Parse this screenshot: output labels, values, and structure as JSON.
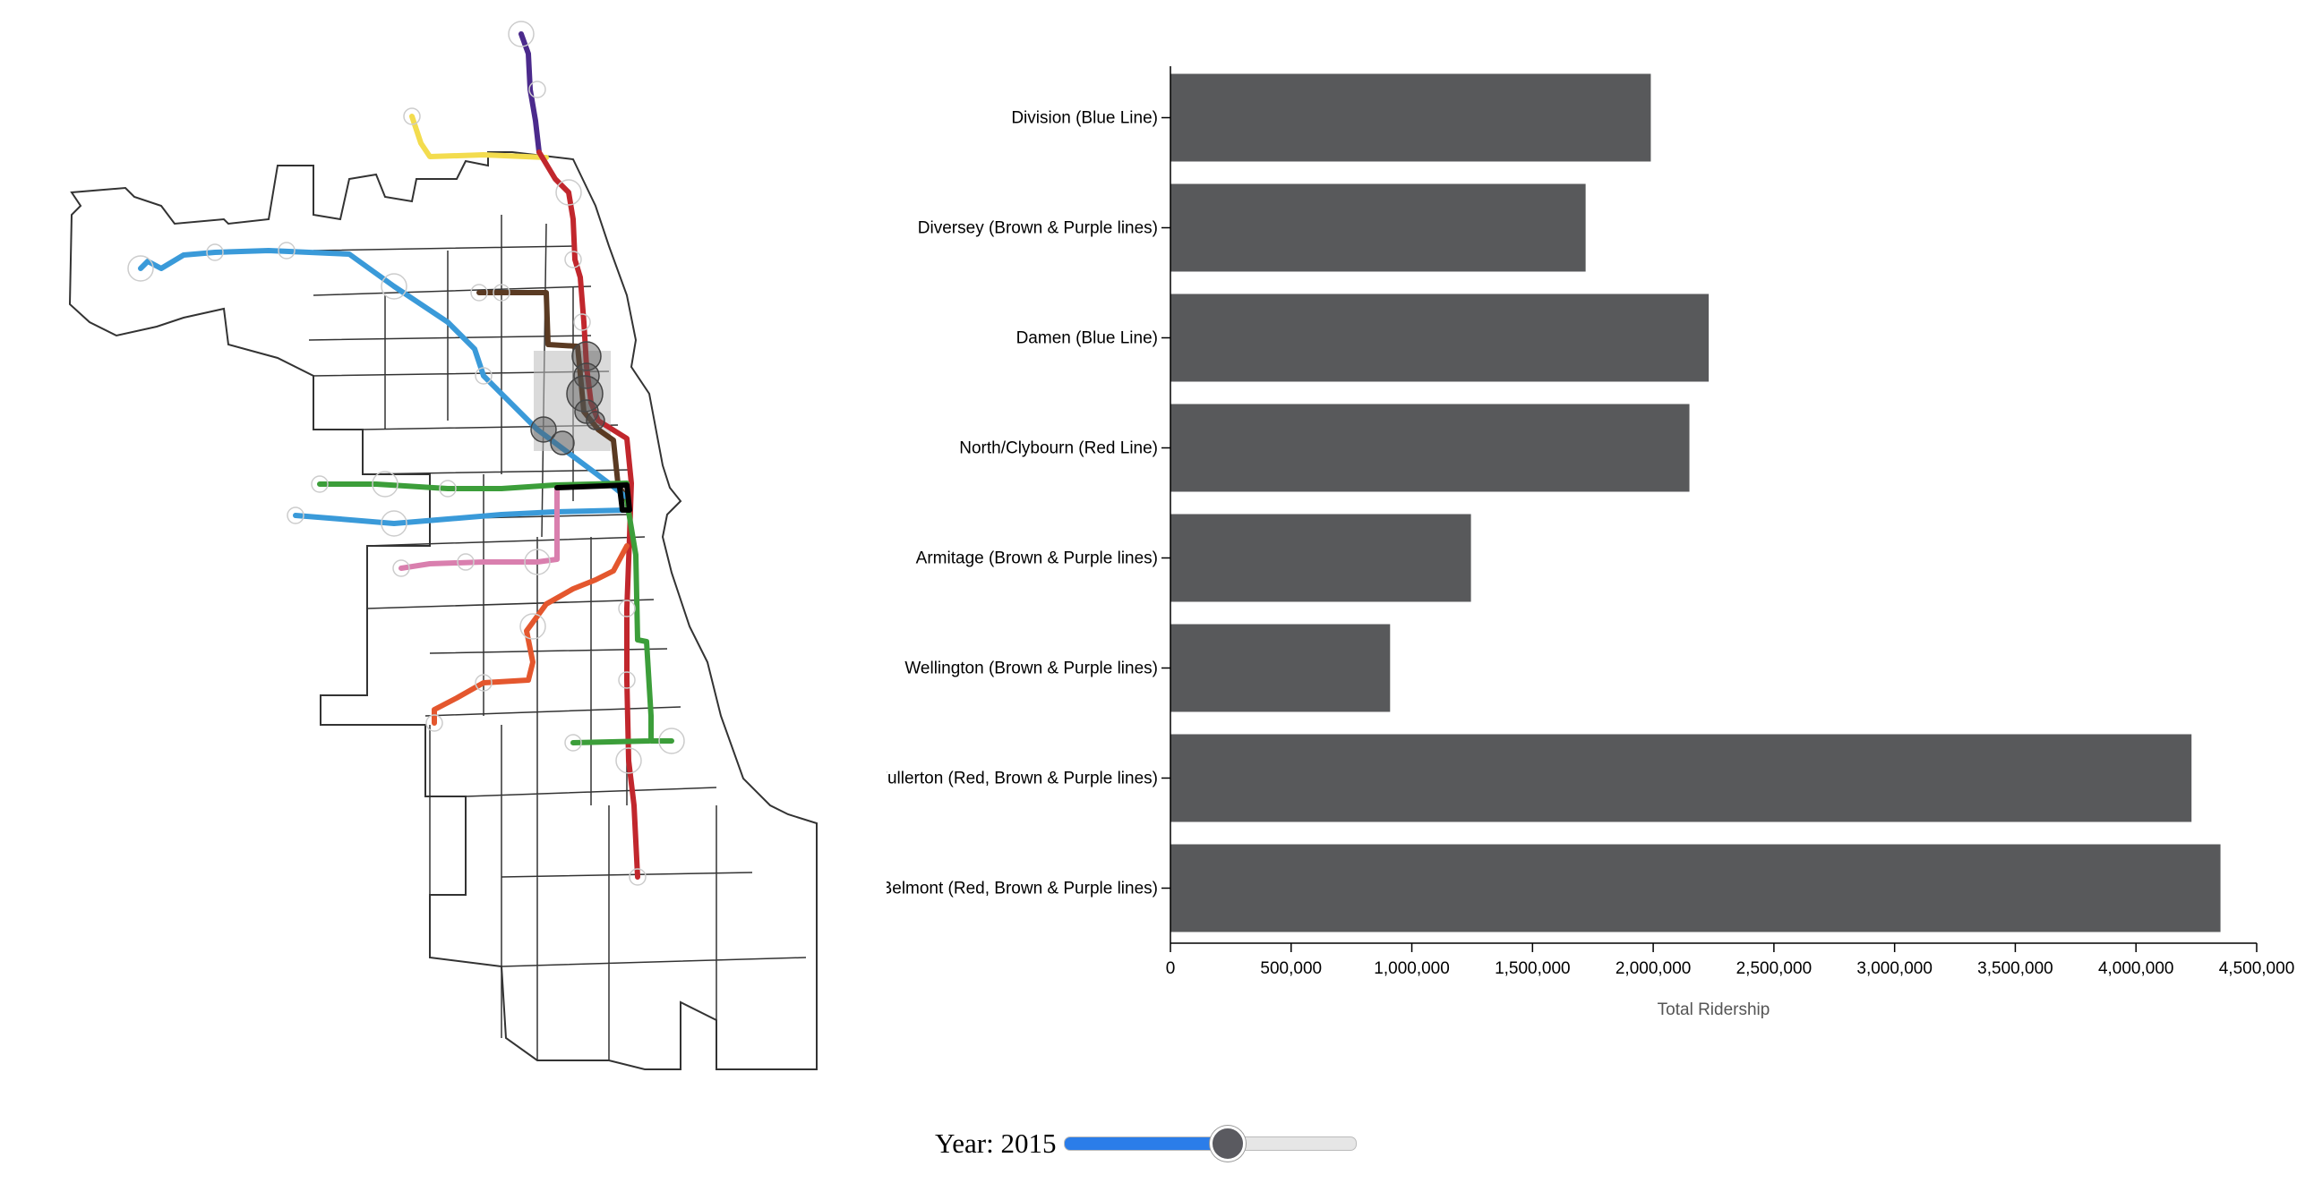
{
  "map": {
    "colors": {
      "boundary": "#333333",
      "red": "#c1272d",
      "blue": "#3a9ad9",
      "brown": "#5a3a22",
      "purple": "#4b2a8c",
      "yellow": "#f3dc4e",
      "green": "#3c9e3a",
      "orange": "#e4572e",
      "pink": "#d97fae",
      "loop": "#000000",
      "brush": "#bbbbbb",
      "station_highlight": "#555555"
    },
    "lines": [
      "purple",
      "yellow",
      "red",
      "brown",
      "blue",
      "green",
      "pink",
      "orange"
    ]
  },
  "chart_data": {
    "type": "bar",
    "orientation": "horizontal",
    "categories": [
      "Division (Blue Line)",
      "Diversey (Brown & Purple lines)",
      "Damen (Blue Line)",
      "North/Clybourn (Red Line)",
      "Armitage (Brown & Purple lines)",
      "Wellington (Brown & Purple lines)",
      "Fullerton (Red, Brown & Purple lines)",
      "Belmont (Red, Brown & Purple lines)"
    ],
    "values": [
      1990000,
      1720000,
      2230000,
      2150000,
      1245000,
      910000,
      4230000,
      4350000
    ],
    "xlabel": "Total Ridership",
    "xlim": [
      0,
      4500000
    ],
    "xticks": [
      0,
      500000,
      1000000,
      1500000,
      2000000,
      2500000,
      3000000,
      3500000,
      4000000,
      4500000
    ],
    "xtick_labels": [
      "0",
      "500,000",
      "1,000,000",
      "1,500,000",
      "2,000,000",
      "2,500,000",
      "3,000,000",
      "3,500,000",
      "4,000,000",
      "4,500,000"
    ],
    "bar_color": "#58595b",
    "grid": false
  },
  "slider": {
    "label_prefix": "Year: ",
    "year": "2015",
    "progress": 0.57
  }
}
